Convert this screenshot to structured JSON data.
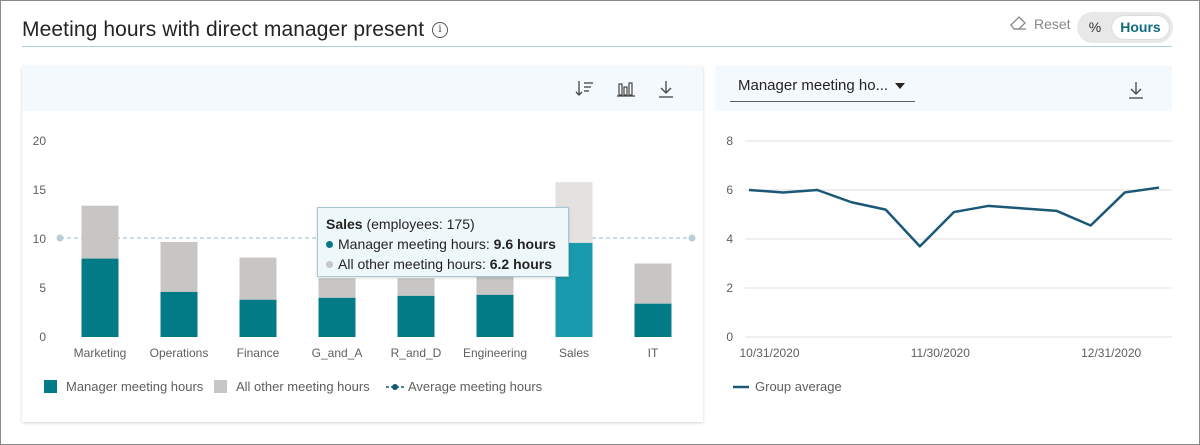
{
  "header": {
    "title": "Meeting hours with direct manager present",
    "info_icon": "info-icon",
    "reset_label": "Reset",
    "toggle": {
      "options": [
        "%",
        "Hours"
      ],
      "selected": "Hours"
    }
  },
  "left_panel": {
    "toolbar": [
      "sort-icon",
      "chart-type-icon",
      "download-icon"
    ],
    "tooltip": {
      "category": "Sales",
      "employees": "(employees: 175)",
      "line1_label": "Manager meeting hours:",
      "line1_value": "9.6 hours",
      "line2_label": "All other meeting hours:",
      "line2_value": "6.2 hours"
    },
    "legend": [
      "Manager meeting hours",
      "All other meeting hours",
      "Average meeting hours"
    ]
  },
  "right_panel": {
    "dropdown_value": "Manager meeting ho...",
    "toolbar": [
      "download-icon"
    ],
    "legend": [
      "Group average"
    ]
  },
  "colors": {
    "manager": "#037b86",
    "manager_highlight": "#1a9aad",
    "other": "#c8c6c4",
    "average": "#0f5a74",
    "line": "#1b5875"
  },
  "chart_data": [
    {
      "type": "bar",
      "stacked": true,
      "categories": [
        "Marketing",
        "Operations",
        "Finance",
        "G_and_A",
        "R_and_D",
        "Engineering",
        "Sales",
        "IT"
      ],
      "series": [
        {
          "name": "Manager meeting hours",
          "values": [
            8.0,
            4.6,
            3.8,
            4.0,
            4.2,
            4.3,
            9.6,
            3.4
          ]
        },
        {
          "name": "All other meeting hours",
          "values": [
            5.4,
            5.1,
            4.3,
            2.0,
            1.8,
            1.9,
            6.2,
            4.1
          ]
        }
      ],
      "average_line": {
        "name": "Average meeting hours",
        "value": 10.1
      },
      "highlighted": "Sales",
      "yticks": [
        0,
        5,
        10,
        15,
        20
      ],
      "ylim": [
        0,
        20
      ],
      "grid": false,
      "legend": "bottom-left"
    },
    {
      "type": "line",
      "series": [
        {
          "name": "Group average",
          "values": [
            6.0,
            5.9,
            6.0,
            5.5,
            5.2,
            3.7,
            5.1,
            5.35,
            5.25,
            5.15,
            4.55,
            5.9,
            6.1
          ]
        }
      ],
      "xticks": [
        "10/31/2020",
        "11/30/2020",
        "12/31/2020"
      ],
      "yticks": [
        0,
        2,
        4,
        6,
        8
      ],
      "ylim": [
        0,
        8
      ],
      "grid": true,
      "legend": "bottom-left"
    }
  ]
}
